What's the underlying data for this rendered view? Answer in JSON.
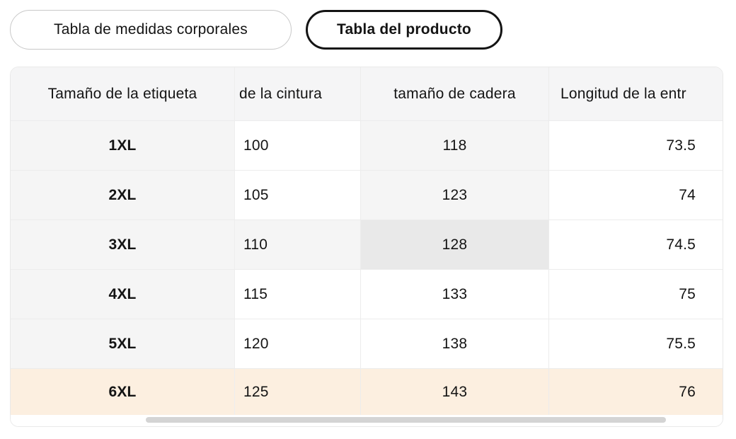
{
  "tabs": {
    "body_measures_label": "Tabla de medidas corporales",
    "product_table_label": "Tabla del producto"
  },
  "table": {
    "columns": [
      {
        "label": "Tamaño de la etiqueta"
      },
      {
        "label": "de la cintura"
      },
      {
        "label": "tamaño de cadera"
      },
      {
        "label": "Longitud de la entr"
      }
    ],
    "rows": [
      {
        "label": "1XL",
        "values": [
          "100",
          "118",
          "73.5"
        ],
        "highlights": [
          "none",
          "light",
          "none"
        ],
        "row_style": "normal"
      },
      {
        "label": "2XL",
        "values": [
          "105",
          "123",
          "74"
        ],
        "highlights": [
          "none",
          "light",
          "none"
        ],
        "row_style": "normal"
      },
      {
        "label": "3XL",
        "values": [
          "110",
          "128",
          "74.5"
        ],
        "highlights": [
          "light",
          "dark",
          "none"
        ],
        "row_style": "normal"
      },
      {
        "label": "4XL",
        "values": [
          "115",
          "133",
          "75"
        ],
        "highlights": [
          "none",
          "none",
          "none"
        ],
        "row_style": "normal"
      },
      {
        "label": "5XL",
        "values": [
          "120",
          "138",
          "75.5"
        ],
        "highlights": [
          "none",
          "none",
          "none"
        ],
        "row_style": "normal"
      },
      {
        "label": "6XL",
        "values": [
          "125",
          "143",
          "76"
        ],
        "highlights": [
          "none",
          "none",
          "none"
        ],
        "row_style": "selected"
      }
    ]
  },
  "colors": {
    "text": "#141414",
    "header_bg": "#f5f5f6",
    "label_bg": "#f5f5f5",
    "highlight_light": "#f5f5f5",
    "highlight_dark": "#e9e9e9",
    "row_selected": "#fcefe0",
    "border": "#ececec",
    "card_border": "#e9e9e9",
    "scrollbar_thumb": "#d4d4d4",
    "tab_border": "#c9c9c9",
    "tab_active_border": "#141414"
  },
  "scrollbar": {
    "orientation": "horizontal"
  }
}
